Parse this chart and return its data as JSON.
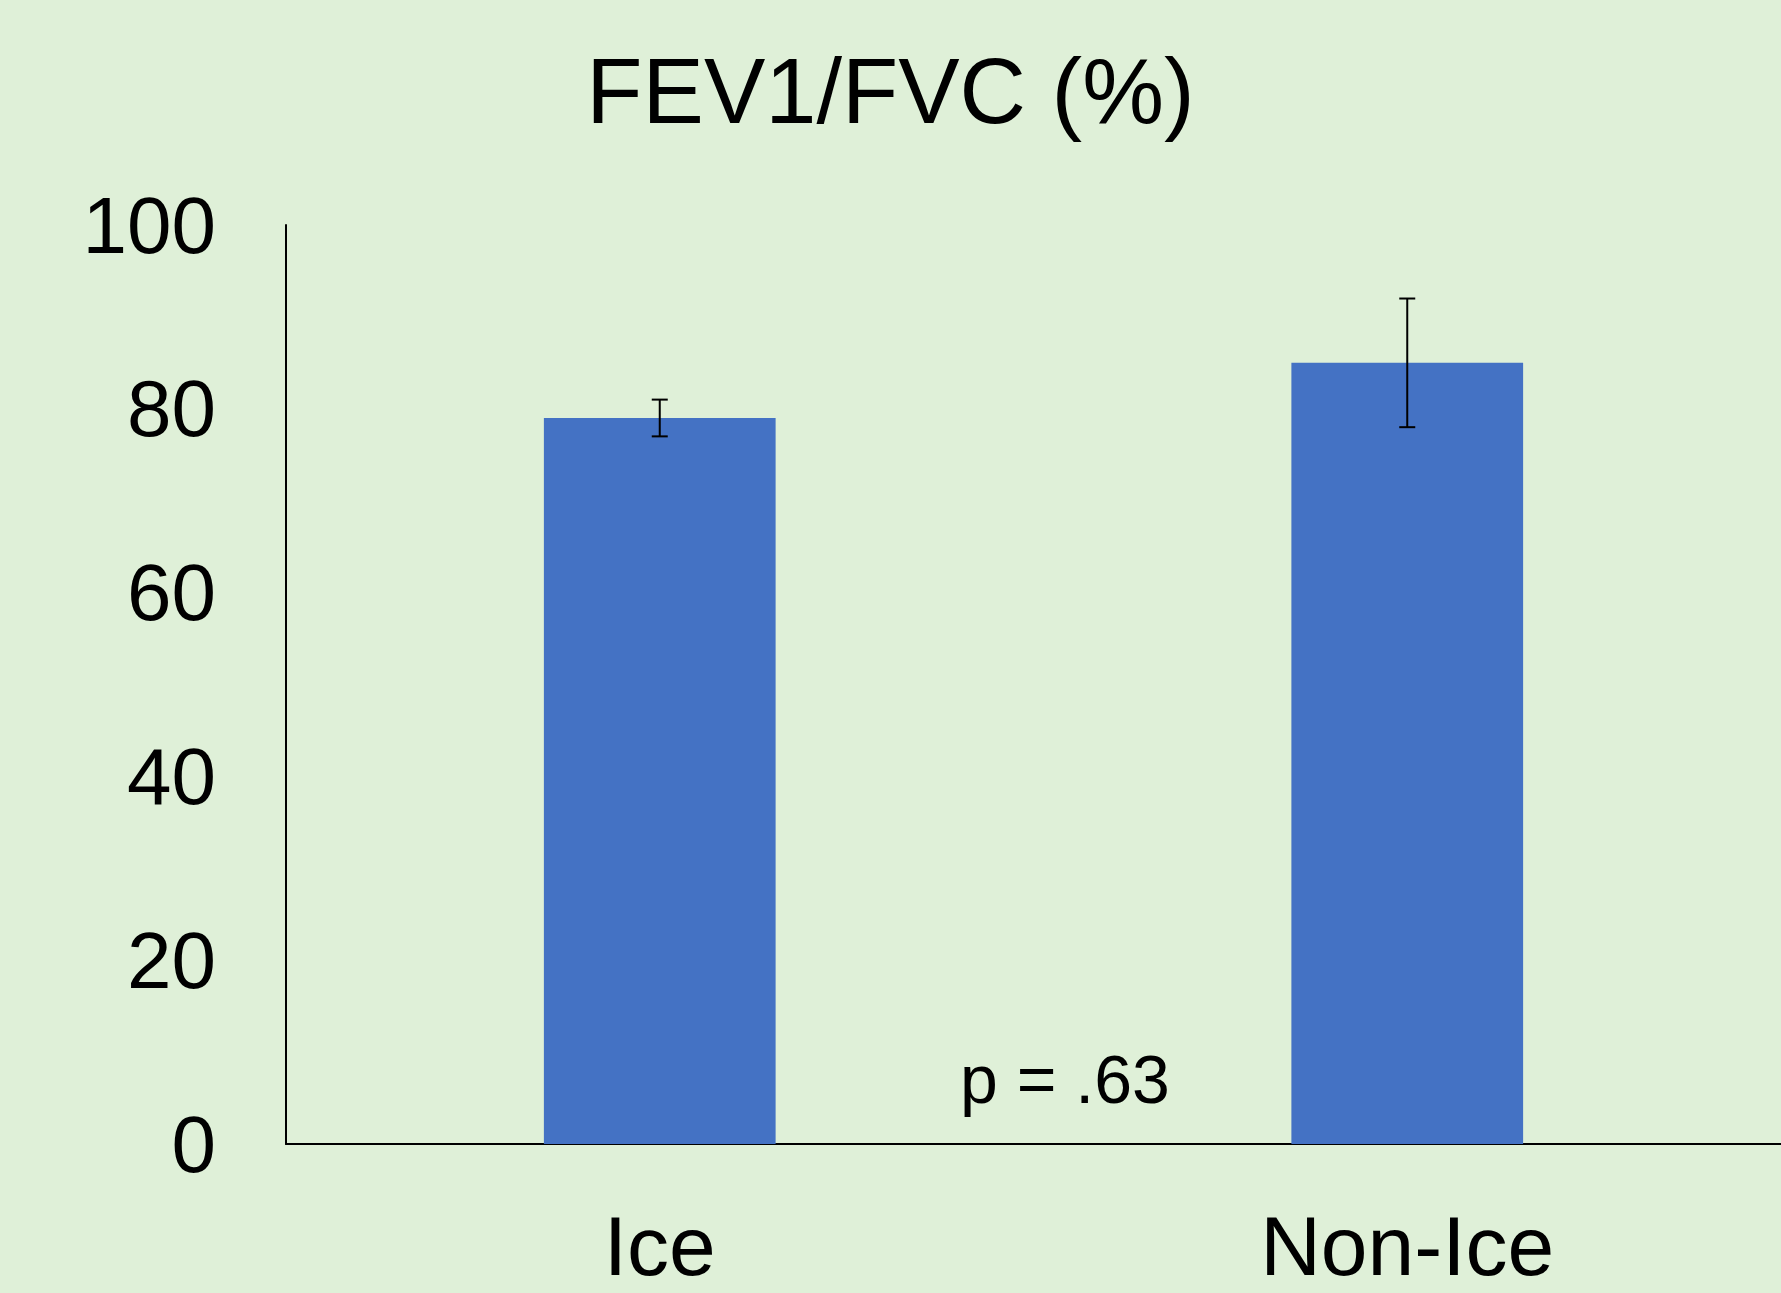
{
  "chart_data": {
    "type": "bar",
    "title": "FEV1/FVC (%)",
    "categories": [
      "Ice",
      "Non-Ice"
    ],
    "series": [
      {
        "color": "#4472c4",
        "values": [
          79,
          85
        ],
        "errors": [
          2,
          7
        ]
      }
    ],
    "ylim": [
      0,
      100
    ],
    "yticks": [
      0,
      20,
      40,
      60,
      80,
      100
    ],
    "grid": false,
    "annotations": [
      "p = .63"
    ]
  }
}
